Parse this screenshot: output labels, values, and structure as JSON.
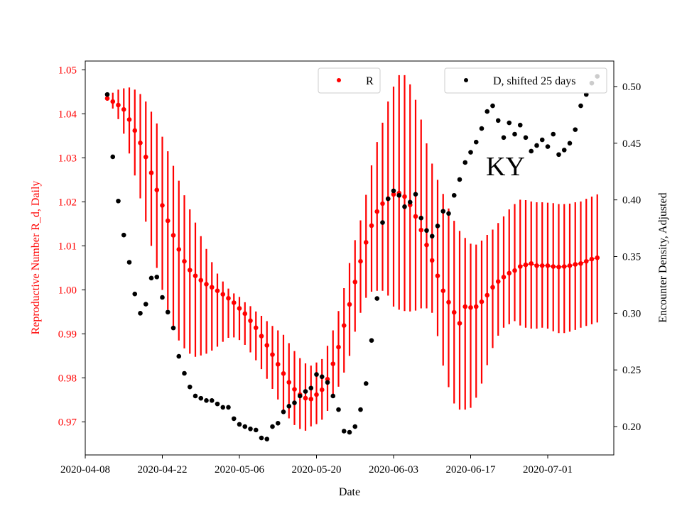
{
  "chart_data": {
    "type": "scatter",
    "title": "",
    "annotation": "KY",
    "xlabel": "Date",
    "ylabel_left": "Reproductive Number R_d, Daily",
    "ylabel_right": "Encounter Density, Adjusted",
    "x_start": "2020-04-08",
    "x_ticks": [
      "2020-04-08",
      "2020-04-22",
      "2020-05-06",
      "2020-05-20",
      "2020-06-03",
      "2020-06-17",
      "2020-07-01"
    ],
    "xlim": [
      "2020-04-08",
      "2020-07-13"
    ],
    "ylim_left": [
      0.9625,
      1.052
    ],
    "yticks_left": [
      "0.97",
      "0.98",
      "0.99",
      "1.00",
      "1.01",
      "1.02",
      "1.03",
      "1.04",
      "1.05"
    ],
    "ylim_right": [
      0.175,
      0.5225
    ],
    "yticks_right": [
      "0.20",
      "0.25",
      "0.30",
      "0.35",
      "0.40",
      "0.45",
      "0.50"
    ],
    "legend": [
      {
        "label": "R",
        "color": "#ff0000",
        "position": "top-center"
      },
      {
        "label": "D, shifted 25 days",
        "color": "#000000",
        "position": "top-right"
      }
    ],
    "colors": {
      "R": "#ff0000",
      "D": "#000000"
    },
    "series": [
      {
        "name": "R",
        "axis": "left",
        "x": [
          "2020-04-12",
          "2020-04-13",
          "2020-04-14",
          "2020-04-15",
          "2020-04-16",
          "2020-04-17",
          "2020-04-18",
          "2020-04-19",
          "2020-04-20",
          "2020-04-21",
          "2020-04-22",
          "2020-04-23",
          "2020-04-24",
          "2020-04-25",
          "2020-04-26",
          "2020-04-27",
          "2020-04-28",
          "2020-04-29",
          "2020-04-30",
          "2020-05-01",
          "2020-05-02",
          "2020-05-03",
          "2020-05-04",
          "2020-05-05",
          "2020-05-06",
          "2020-05-07",
          "2020-05-08",
          "2020-05-09",
          "2020-05-10",
          "2020-05-11",
          "2020-05-12",
          "2020-05-13",
          "2020-05-14",
          "2020-05-15",
          "2020-05-16",
          "2020-05-17",
          "2020-05-18",
          "2020-05-19",
          "2020-05-20",
          "2020-05-21",
          "2020-05-22",
          "2020-05-23",
          "2020-05-24",
          "2020-05-25",
          "2020-05-26",
          "2020-05-27",
          "2020-05-28",
          "2020-05-29",
          "2020-05-30",
          "2020-05-31",
          "2020-06-01",
          "2020-06-02",
          "2020-06-03",
          "2020-06-04",
          "2020-06-05",
          "2020-06-06",
          "2020-06-07",
          "2020-06-08",
          "2020-06-09",
          "2020-06-10",
          "2020-06-11",
          "2020-06-12",
          "2020-06-13",
          "2020-06-14",
          "2020-06-15",
          "2020-06-16",
          "2020-06-17",
          "2020-06-18",
          "2020-06-19",
          "2020-06-20",
          "2020-06-21",
          "2020-06-22",
          "2020-06-23",
          "2020-06-24",
          "2020-06-25",
          "2020-06-26",
          "2020-06-27",
          "2020-06-28",
          "2020-06-29",
          "2020-06-30",
          "2020-07-01",
          "2020-07-02",
          "2020-07-03",
          "2020-07-04",
          "2020-07-05",
          "2020-07-06",
          "2020-07-07",
          "2020-07-08",
          "2020-07-09",
          "2020-07-10"
        ],
        "y": [
          1.0435,
          1.0428,
          1.042,
          1.041,
          1.0387,
          1.0362,
          1.0334,
          1.0302,
          1.0266,
          1.0227,
          1.0192,
          1.0157,
          1.0124,
          1.0092,
          1.0065,
          1.0045,
          1.0032,
          1.0022,
          1.0013,
          1.0006,
          0.9998,
          0.999,
          0.9981,
          0.9971,
          0.9958,
          0.9946,
          0.993,
          0.9914,
          0.9895,
          0.9874,
          0.9853,
          0.9831,
          0.981,
          0.979,
          0.9774,
          0.9762,
          0.9754,
          0.9752,
          0.9762,
          0.9773,
          0.9797,
          0.9832,
          0.987,
          0.9919,
          0.9967,
          1.0018,
          1.0065,
          1.0108,
          1.0146,
          1.0178,
          1.0196,
          1.0207,
          1.0217,
          1.022,
          1.0212,
          1.0193,
          1.0167,
          1.0136,
          1.0102,
          1.0067,
          1.0032,
          0.9998,
          0.9972,
          0.9949,
          0.9924,
          0.9962,
          0.996,
          0.9962,
          0.9973,
          0.9988,
          1.0006,
          1.0019,
          1.0029,
          1.0038,
          1.0044,
          1.0053,
          1.0057,
          1.006,
          1.0055,
          1.0055,
          1.0055,
          1.0053,
          1.0052,
          1.0053,
          1.0055,
          1.0058,
          1.006,
          1.0065,
          1.007,
          1.0073
        ],
        "y_low": [
          1.043,
          1.0412,
          1.0388,
          1.0355,
          1.031,
          1.026,
          1.0208,
          1.0155,
          1.01,
          1.005,
          1.0,
          0.9955,
          0.9912,
          0.9885,
          0.9867,
          0.9855,
          0.9848,
          0.9851,
          0.9855,
          0.9862,
          0.9871,
          0.9882,
          0.9891,
          0.9892,
          0.9886,
          0.9875,
          0.9858,
          0.984,
          0.982,
          0.9798,
          0.9775,
          0.9751,
          0.9727,
          0.9708,
          0.9693,
          0.9684,
          0.968,
          0.969,
          0.9695,
          0.9705,
          0.9725,
          0.9755,
          0.978,
          0.9812,
          0.985,
          0.9905,
          0.9948,
          0.9982,
          0.9996,
          0.9998,
          0.9998,
          0.9987,
          0.9962,
          0.9955,
          0.9952,
          0.9951,
          0.9953,
          0.9958,
          0.9958,
          0.9948,
          0.9895,
          0.9828,
          0.9779,
          0.9742,
          0.9728,
          0.9728,
          0.9732,
          0.9755,
          0.9787,
          0.9829,
          0.9868,
          0.9896,
          0.9914,
          0.9922,
          0.9929,
          0.9919,
          0.9914,
          0.9912,
          0.9912,
          0.9914,
          0.9912,
          0.9906,
          0.9902,
          0.9902,
          0.9905,
          0.9909,
          0.9914,
          0.9918,
          0.9922,
          0.9926
        ],
        "y_high": [
          1.0443,
          1.0448,
          1.0455,
          1.0458,
          1.046,
          1.0455,
          1.0445,
          1.0428,
          1.0405,
          1.0378,
          1.0348,
          1.0315,
          1.0282,
          1.0248,
          1.0215,
          1.0183,
          1.0153,
          1.0122,
          1.0093,
          1.0063,
          1.0037,
          1.0019,
          1.0003,
          0.9992,
          0.9984,
          0.9972,
          0.9963,
          0.9951,
          0.9941,
          0.9929,
          0.9918,
          0.9908,
          0.9898,
          0.9879,
          0.9861,
          0.9845,
          0.9833,
          0.9828,
          0.9835,
          0.9843,
          0.9873,
          0.9908,
          0.9952,
          1.0004,
          1.0061,
          1.0113,
          1.0158,
          1.0216,
          1.0283,
          1.0336,
          1.038,
          1.0428,
          1.0462,
          1.0488,
          1.0488,
          1.0467,
          1.0432,
          1.0387,
          1.0333,
          1.0287,
          1.025,
          1.0218,
          1.0185,
          1.0157,
          1.0134,
          1.0118,
          1.0105,
          1.0103,
          1.0112,
          1.0125,
          1.0137,
          1.0152,
          1.0167,
          1.0183,
          1.0195,
          1.0205,
          1.0204,
          1.0201,
          1.0199,
          1.0199,
          1.0198,
          1.0197,
          1.0195,
          1.0195,
          1.0196,
          1.0199,
          1.0201,
          1.0207,
          1.0212,
          1.0217
        ],
        "line_from": "2020-06-26"
      },
      {
        "name": "D, shifted 25 days",
        "axis": "right",
        "x": [
          "2020-04-12",
          "2020-04-13",
          "2020-04-14",
          "2020-04-15",
          "2020-04-16",
          "2020-04-17",
          "2020-04-18",
          "2020-04-19",
          "2020-04-20",
          "2020-04-21",
          "2020-04-22",
          "2020-04-23",
          "2020-04-24",
          "2020-04-25",
          "2020-04-26",
          "2020-04-27",
          "2020-04-28",
          "2020-04-29",
          "2020-04-30",
          "2020-05-01",
          "2020-05-02",
          "2020-05-03",
          "2020-05-04",
          "2020-05-05",
          "2020-05-06",
          "2020-05-07",
          "2020-05-08",
          "2020-05-09",
          "2020-05-10",
          "2020-05-11",
          "2020-05-12",
          "2020-05-13",
          "2020-05-14",
          "2020-05-15",
          "2020-05-16",
          "2020-05-17",
          "2020-05-18",
          "2020-05-19",
          "2020-05-20",
          "2020-05-21",
          "2020-05-22",
          "2020-05-23",
          "2020-05-24",
          "2020-05-25",
          "2020-05-26",
          "2020-05-27",
          "2020-05-28",
          "2020-05-29",
          "2020-05-30",
          "2020-05-31",
          "2020-06-01",
          "2020-06-02",
          "2020-06-03",
          "2020-06-04",
          "2020-06-05",
          "2020-06-06",
          "2020-06-07",
          "2020-06-08",
          "2020-06-09",
          "2020-06-10",
          "2020-06-11",
          "2020-06-12",
          "2020-06-13",
          "2020-06-14",
          "2020-06-15",
          "2020-06-16",
          "2020-06-17",
          "2020-06-18",
          "2020-06-19",
          "2020-06-20",
          "2020-06-21",
          "2020-06-22",
          "2020-06-23",
          "2020-06-24",
          "2020-06-25",
          "2020-06-26",
          "2020-06-27",
          "2020-06-28",
          "2020-06-29",
          "2020-06-30",
          "2020-07-01",
          "2020-07-02",
          "2020-07-03",
          "2020-07-04",
          "2020-07-05",
          "2020-07-06",
          "2020-07-07",
          "2020-07-08",
          "2020-07-09",
          "2020-07-10"
        ],
        "y": [
          0.493,
          0.438,
          0.399,
          0.369,
          0.345,
          0.317,
          0.3,
          0.308,
          0.331,
          0.332,
          0.314,
          0.301,
          0.287,
          0.262,
          0.247,
          0.235,
          0.227,
          0.225,
          0.223,
          0.223,
          0.22,
          0.217,
          0.217,
          0.207,
          0.202,
          0.2,
          0.198,
          0.197,
          0.19,
          0.189,
          0.2,
          0.203,
          0.213,
          0.218,
          0.221,
          0.227,
          0.231,
          0.234,
          0.246,
          0.244,
          0.239,
          0.227,
          0.215,
          0.196,
          0.195,
          0.2,
          0.215,
          0.238,
          0.276,
          0.313,
          0.38,
          0.401,
          0.408,
          0.404,
          0.394,
          0.398,
          0.405,
          0.384,
          0.373,
          0.368,
          0.377,
          0.39,
          0.388,
          0.404,
          0.418,
          0.433,
          0.442,
          0.451,
          0.463,
          0.478,
          0.483,
          0.47,
          0.455,
          0.468,
          0.458,
          0.466,
          0.455,
          0.443,
          0.448,
          0.453,
          0.447,
          0.458,
          0.44,
          0.444,
          0.45,
          0.462,
          0.483,
          0.493,
          0.503,
          0.509
        ]
      }
    ]
  }
}
